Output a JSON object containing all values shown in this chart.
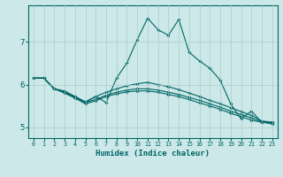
{
  "xlabel": "Humidex (Indice chaleur)",
  "bg_color": "#cce8e8",
  "grid_color": "#aacccc",
  "line_color": "#006666",
  "xlim": [
    -0.5,
    23.5
  ],
  "ylim": [
    4.75,
    7.85
  ],
  "xticks": [
    0,
    1,
    2,
    3,
    4,
    5,
    6,
    7,
    8,
    9,
    10,
    11,
    12,
    13,
    14,
    15,
    16,
    17,
    18,
    19,
    20,
    21,
    22,
    23
  ],
  "yticks": [
    5,
    6,
    7
  ],
  "lines": [
    [
      6.15,
      6.15,
      5.9,
      5.85,
      5.72,
      5.58,
      5.72,
      5.58,
      6.15,
      6.5,
      7.05,
      7.55,
      7.28,
      7.15,
      7.52,
      6.75,
      6.55,
      6.38,
      6.1,
      5.55,
      5.2,
      5.38,
      5.12,
      5.12
    ],
    [
      6.15,
      6.15,
      5.9,
      5.82,
      5.72,
      5.6,
      5.72,
      5.82,
      5.9,
      5.97,
      6.02,
      6.05,
      6.0,
      5.95,
      5.88,
      5.8,
      5.72,
      5.63,
      5.55,
      5.46,
      5.37,
      5.28,
      5.15,
      5.12
    ],
    [
      6.15,
      6.15,
      5.9,
      5.82,
      5.7,
      5.58,
      5.65,
      5.75,
      5.82,
      5.87,
      5.9,
      5.9,
      5.87,
      5.82,
      5.77,
      5.7,
      5.63,
      5.55,
      5.47,
      5.38,
      5.3,
      5.22,
      5.13,
      5.1
    ],
    [
      6.15,
      6.15,
      5.9,
      5.8,
      5.68,
      5.55,
      5.62,
      5.72,
      5.78,
      5.83,
      5.85,
      5.85,
      5.82,
      5.77,
      5.72,
      5.65,
      5.57,
      5.5,
      5.42,
      5.33,
      5.25,
      5.17,
      5.12,
      5.08
    ]
  ]
}
